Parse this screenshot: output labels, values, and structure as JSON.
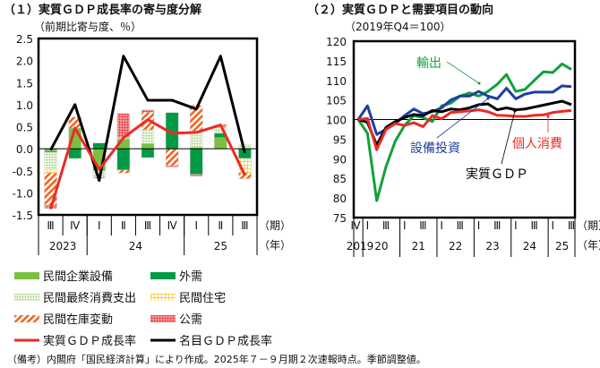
{
  "chart_data": [
    {
      "type": "bar",
      "title": "（１）実質ＧＤＰ成長率の寄与度分解",
      "subtitle": "（前期比寄与度、％）",
      "ylim": [
        -1.5,
        2.5
      ],
      "yticks": [
        "2.5",
        "2.0",
        "1.5",
        "1.0",
        "0.5",
        "0.0",
        "-0.5",
        "-1.0",
        "-1.5"
      ],
      "categories": [
        "Ⅲ",
        "Ⅳ",
        "Ⅰ",
        "Ⅱ",
        "Ⅲ",
        "Ⅳ",
        "Ⅰ",
        "Ⅱ",
        "Ⅲ"
      ],
      "years": [
        {
          "label": "2023",
          "span": 2
        },
        {
          "label": "24",
          "span": 4
        },
        {
          "label": "25",
          "span": 3
        }
      ],
      "x_unit_quarter": "（期）",
      "x_unit_year": "（年）",
      "stacked": true,
      "series": [
        {
          "name": "民間企業設備",
          "color": "#7ac143",
          "pattern": "solid",
          "values": [
            -0.05,
            0.47,
            -0.5,
            0.22,
            0.12,
            0.0,
            0.03,
            0.25,
            0.0
          ]
        },
        {
          "name": "外需",
          "color": "#009a44",
          "pattern": "solid",
          "values": [
            -0.03,
            -0.22,
            0.13,
            -0.48,
            -0.2,
            0.82,
            -0.58,
            0.1,
            -0.22
          ]
        },
        {
          "name": "民間最終消費支出",
          "color": "#cfe8b0",
          "pattern": "dots",
          "values": [
            -0.4,
            0.0,
            -0.15,
            0.03,
            0.31,
            0.0,
            0.37,
            0.15,
            0.1
          ]
        },
        {
          "name": "民間住宅",
          "color": "#f7c21e",
          "pattern": "grid",
          "values": [
            -0.07,
            0.0,
            0.0,
            0.0,
            0.0,
            0.0,
            0.0,
            0.0,
            -0.33
          ]
        },
        {
          "name": "民間在庫変動",
          "color": "#f26522",
          "pattern": "hatch",
          "values": [
            -0.73,
            0.25,
            -0.02,
            -0.07,
            0.4,
            -0.38,
            0.58,
            0.05,
            -0.13
          ]
        },
        {
          "name": "公需",
          "color": "#e8242a",
          "pattern": "redDots",
          "values": [
            -0.07,
            0.0,
            0.0,
            0.55,
            0.05,
            -0.04,
            -0.04,
            0.0,
            0.0
          ]
        }
      ],
      "lines": [
        {
          "name": "実質ＧＤＰ成長率",
          "color": "#ee2a24",
          "values": [
            -1.37,
            0.47,
            -0.47,
            0.25,
            0.66,
            0.35,
            0.37,
            0.54,
            -0.6
          ]
        },
        {
          "name": "名目ＧＤＰ成長率",
          "color": "#000000",
          "values": [
            -0.03,
            1.0,
            -0.72,
            2.1,
            1.1,
            1.1,
            0.9,
            2.1,
            -0.1
          ]
        }
      ]
    },
    {
      "type": "line",
      "title": "（２）実質ＧＤＰと需要項目の動向",
      "subtitle": "（2019年Q4＝100）",
      "ylim": [
        75,
        120
      ],
      "yticks": [
        "120",
        "115",
        "110",
        "105",
        "100",
        "95",
        "90",
        "85",
        "80",
        "75"
      ],
      "quarter_labels": [
        "Ⅳ",
        "Ⅰ",
        "",
        "Ⅲ",
        "",
        "Ⅰ",
        "",
        "Ⅲ",
        "",
        "Ⅰ",
        "",
        "Ⅲ",
        "",
        "Ⅰ",
        "",
        "Ⅲ",
        "",
        "Ⅰ",
        "",
        "Ⅲ",
        "",
        "Ⅰ",
        "",
        "Ⅲ"
      ],
      "years": [
        {
          "label": "2019",
          "span": 1
        },
        {
          "label": "20",
          "span": 4
        },
        {
          "label": "21",
          "span": 4
        },
        {
          "label": "22",
          "span": 4
        },
        {
          "label": "23",
          "span": 4
        },
        {
          "label": "24",
          "span": 4
        },
        {
          "label": "25",
          "span": 3
        }
      ],
      "x_unit_quarter": "（期）",
      "x_unit_year": "（年）",
      "series": [
        {
          "name": "輸出",
          "color": "#12a03c",
          "values": [
            100,
            96.5,
            79.3,
            88,
            94.5,
            98.5,
            101,
            100.5,
            99.5,
            103.5,
            104.2,
            106,
            106.8,
            106,
            107.2,
            109,
            111.5,
            107.2,
            107.7,
            110,
            112.2,
            112,
            114.2,
            112.8
          ]
        },
        {
          "name": "設備投資",
          "color": "#1f3f9f",
          "values": [
            100,
            103.5,
            96.2,
            97.5,
            99,
            101,
            102.7,
            101.5,
            102,
            103,
            105,
            106,
            106,
            107.2,
            106,
            105.3,
            108,
            105.3,
            106.5,
            107,
            107,
            107,
            108.6,
            108.4
          ]
        },
        {
          "name": "実質ＧＤＰ",
          "color": "#000000",
          "values": [
            100,
            99.3,
            93.5,
            98,
            99.5,
            100.5,
            101.3,
            101,
            102.3,
            102,
            102.7,
            102.5,
            103,
            103.8,
            104,
            102.5,
            103,
            102.5,
            102.7,
            103.2,
            103.7,
            104.2,
            104.7,
            103.8
          ]
        },
        {
          "name": "個人消費",
          "color": "#ee2a24",
          "values": [
            100,
            100.3,
            92.3,
            97.5,
            99,
            98.5,
            99.2,
            98.2,
            101,
            100.2,
            101.8,
            102,
            102.2,
            102.5,
            102,
            101.1,
            101,
            100.8,
            100.8,
            101.1,
            101.2,
            101.8,
            102.1,
            102.3
          ]
        }
      ]
    }
  ],
  "legend": [
    "民間企業設備",
    "外需",
    "民間最終消費支出",
    "民間住宅",
    "民間在庫変動",
    "公需",
    "実質ＧＤＰ成長率",
    "名目ＧＤＰ成長率"
  ],
  "footnote": "（備考）内閣府「国民経済計算」により作成。2025年７－９月期２次速報時点。季節調整値。"
}
